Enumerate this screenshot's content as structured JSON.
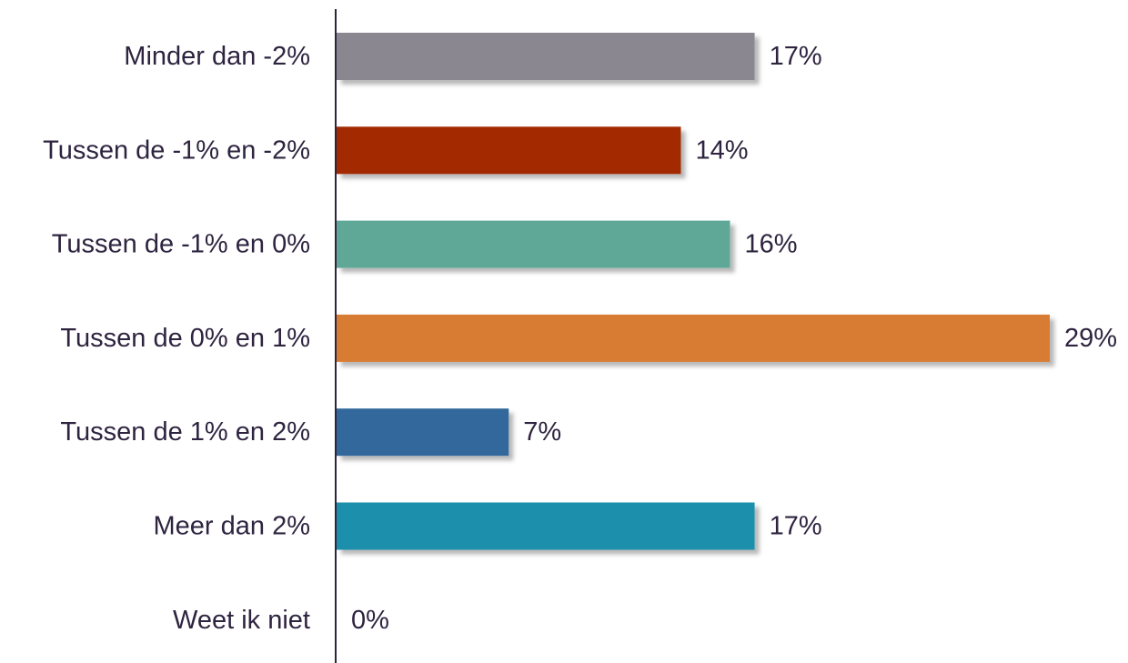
{
  "chart_data": {
    "type": "bar",
    "orientation": "horizontal",
    "categories": [
      "Minder dan -2%",
      "Tussen de -1% en -2%",
      "Tussen de -1% en 0%",
      "Tussen de 0% en 1%",
      "Tussen de 1% en 2%",
      "Meer dan 2%",
      "Weet ik niet"
    ],
    "values": [
      17,
      14,
      16,
      29,
      7,
      17,
      0
    ],
    "value_labels": [
      "17%",
      "14%",
      "16%",
      "29%",
      "7%",
      "17%",
      "0%"
    ],
    "colors": [
      "#8a8791",
      "#a32a00",
      "#5fa898",
      "#d77b33",
      "#33689b",
      "#1f8fad",
      "#cccccc"
    ],
    "xlim": [
      0,
      29
    ],
    "grid": false,
    "legend": "none"
  },
  "colors": {
    "axis": "#2f2440",
    "text": "#2f2440"
  }
}
